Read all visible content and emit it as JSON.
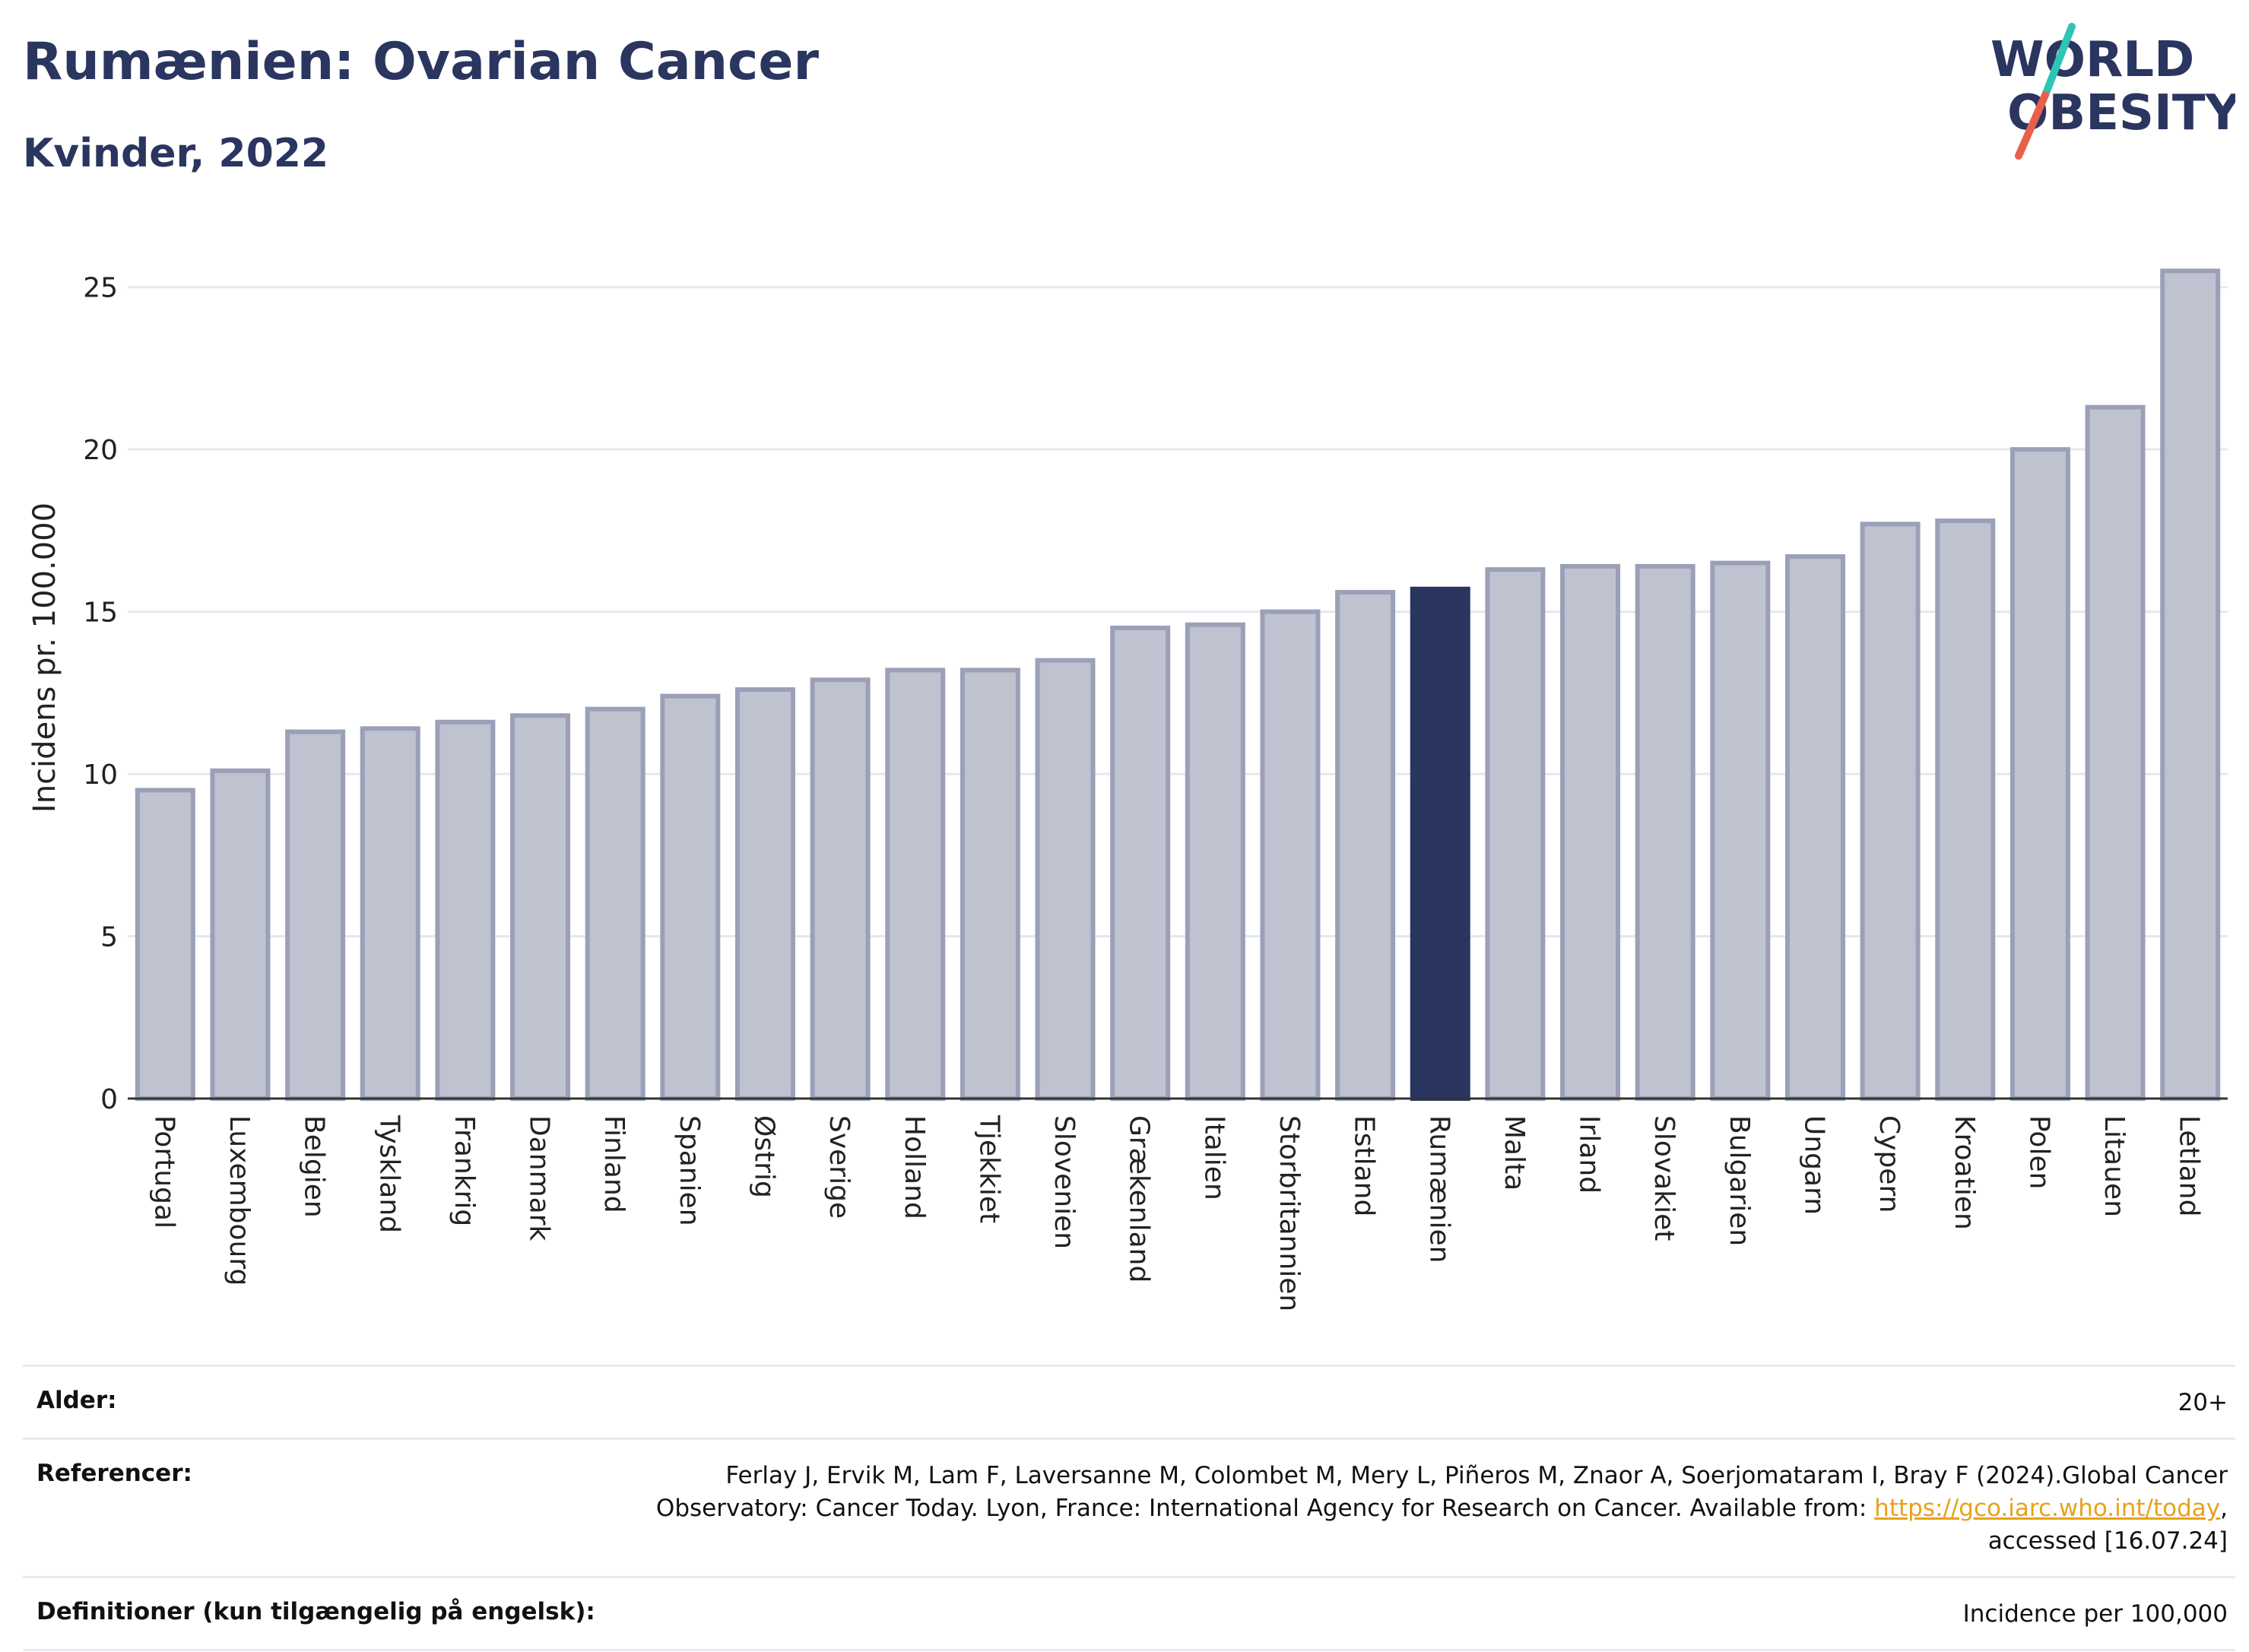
{
  "title": "Rumænien: Ovarian Cancer",
  "subtitle": "Kvinder, 2022",
  "logo": {
    "line1": "WORLD",
    "line2": "OBESITY"
  },
  "colors": {
    "bar": "#bfc2cf",
    "bar_stroke": "#9ba0b8",
    "highlight": "#2a3560",
    "text": "#2a3560",
    "grid": "#e6e8ee",
    "logo_teal": "#2ec4b6",
    "logo_red": "#e8604c"
  },
  "chart_data": {
    "type": "bar",
    "categories": [
      "Portugal",
      "Luxembourg",
      "Belgien",
      "Tyskland",
      "Frankrig",
      "Danmark",
      "Finland",
      "Spanien",
      "Østrig",
      "Sverige",
      "Holland",
      "Tjekkiet",
      "Slovenien",
      "Grækenland",
      "Italien",
      "Storbritannien",
      "Estland",
      "Rumænien",
      "Malta",
      "Irland",
      "Slovakiet",
      "Bulgarien",
      "Ungarn",
      "Cypern",
      "Kroatien",
      "Polen",
      "Litauen",
      "Letland"
    ],
    "values": [
      9.5,
      10.1,
      11.3,
      11.4,
      11.6,
      11.8,
      12.0,
      12.4,
      12.6,
      12.9,
      13.2,
      13.2,
      13.5,
      14.5,
      14.6,
      15.0,
      15.6,
      15.7,
      16.3,
      16.4,
      16.4,
      16.5,
      16.7,
      17.7,
      17.8,
      20.0,
      21.3,
      25.5
    ],
    "highlight": "Rumænien",
    "ylabel": "Incidens pr. 100.000",
    "xlabel": "",
    "ylim": [
      0,
      26
    ],
    "yticks": [
      0,
      5,
      10,
      15,
      20,
      25
    ],
    "grid": true
  },
  "footer": {
    "age_label": "Alder:",
    "age_value": "20+",
    "ref_label": "Referencer:",
    "ref_text_1": "Ferlay J, Ervik M, Lam F, Laversanne M, Colombet M, Mery L, Piñeros M, Znaor A, Soerjomataram I, Bray F (2024).Global Cancer Observatory: Cancer Today. Lyon, France: International Agency for Research on Cancer. Available from: ",
    "ref_link": "https://gco.iarc.who.int/today",
    "ref_text_2": ", accessed [16.07.24]",
    "def_label": "Definitioner (kun tilgængelig på engelsk):",
    "def_value": "Incidence per 100,000"
  }
}
